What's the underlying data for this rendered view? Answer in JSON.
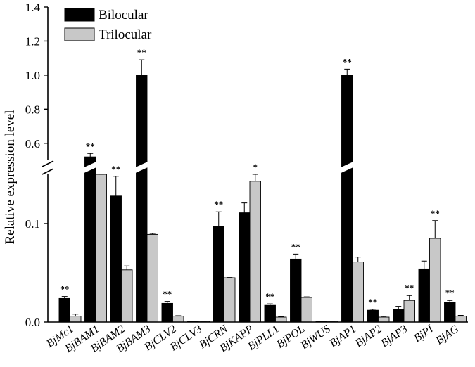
{
  "chart_data": {
    "type": "bar",
    "ylabel": "Relative expression level",
    "axis_break": true,
    "scale_segments": [
      {
        "range": [
          0.0,
          0.15
        ],
        "tick_values": [
          0.0,
          0.1
        ],
        "tick_labels": [
          "0.0",
          "0.1"
        ]
      },
      {
        "range": [
          0.5,
          1.4
        ],
        "tick_values": [
          0.6,
          0.8,
          1.0,
          1.2,
          1.4
        ],
        "tick_labels": [
          "0.6",
          "0.8",
          "1.0",
          "1.2",
          "1.4"
        ]
      }
    ],
    "categories": [
      "BjMc1",
      "BjBAM1",
      "BjBAM2",
      "BjBAM3",
      "BjCLV2",
      "BjCLV3",
      "BjCRN",
      "BjKAPP",
      "BjPLL1",
      "BjPOL",
      "BjWUS",
      "BjAP1",
      "BjAP2",
      "BjAP3",
      "BjPI",
      "BjAG"
    ],
    "series": [
      {
        "name": "Bilocular",
        "color": "#000000",
        "values": [
          0.024,
          0.52,
          0.128,
          1.0,
          0.019,
          0.0008,
          0.097,
          0.111,
          0.017,
          0.064,
          0.0008,
          1.0,
          0.012,
          0.013,
          0.054,
          0.02
        ],
        "errors": [
          0.002,
          0.02,
          0.02,
          0.09,
          0.002,
          0.0002,
          0.015,
          0.01,
          0.0015,
          0.005,
          0.0002,
          0.035,
          0.001,
          0.003,
          0.008,
          0.002
        ],
        "significance": [
          "**",
          "**",
          "**",
          "**",
          "**",
          "",
          "**",
          "",
          "**",
          "**",
          "",
          "**",
          "**",
          "",
          "",
          "**"
        ]
      },
      {
        "name": "Trilocular",
        "color": "#c8c8c8",
        "values": [
          0.006,
          0.165,
          0.053,
          0.089,
          0.006,
          0.0008,
          0.045,
          0.143,
          0.005,
          0.025,
          0.0008,
          0.061,
          0.005,
          0.022,
          0.085,
          0.006
        ],
        "errors": [
          0.002,
          0.013,
          0.004,
          0.001,
          0.0004,
          0.0002,
          0.0003,
          0.016,
          0.0005,
          0.0006,
          0.0002,
          0.005,
          0.0008,
          0.005,
          0.018,
          0.0008
        ],
        "significance": [
          "",
          "",
          "",
          "",
          "",
          "",
          "",
          "*",
          "",
          "",
          "",
          "",
          "",
          "**",
          "**",
          ""
        ]
      }
    ],
    "legend": {
      "position": "top-left",
      "entries": [
        "Bilocular",
        "Trilocular"
      ]
    }
  }
}
